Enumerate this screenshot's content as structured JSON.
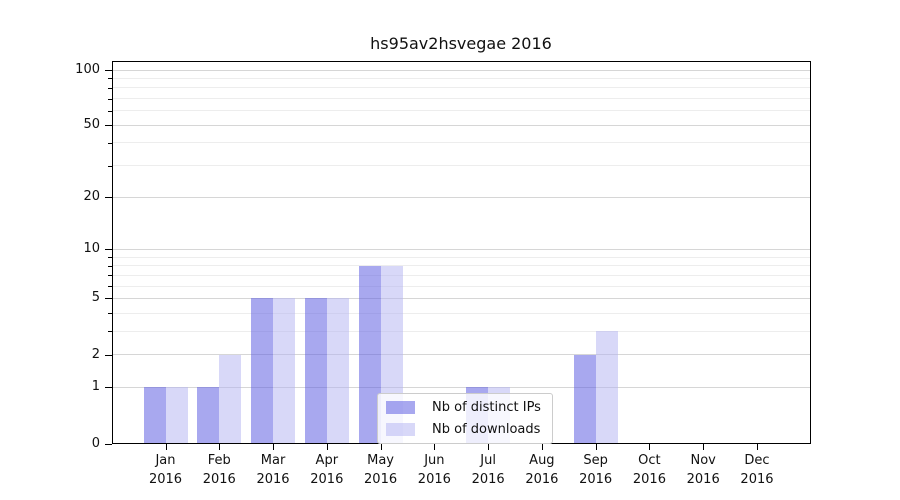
{
  "title": "hs95av2hsvegae 2016",
  "chart_data": {
    "type": "bar",
    "title": "hs95av2hsvegae 2016",
    "categories": [
      "Jan",
      "Feb",
      "Mar",
      "Apr",
      "May",
      "Jun",
      "Jul",
      "Aug",
      "Sep",
      "Oct",
      "Nov",
      "Dec"
    ],
    "category_year": "2016",
    "series": [
      {
        "name": "Nb of distinct IPs",
        "color": "rgba(96,96,226,0.55)",
        "values": [
          1,
          1,
          5,
          5,
          8,
          0,
          1,
          0,
          2,
          0,
          0,
          0
        ]
      },
      {
        "name": "Nb of downloads",
        "color": "rgba(177,177,241,0.5)",
        "values": [
          1,
          2,
          5,
          5,
          8,
          0,
          1,
          0,
          3,
          0,
          0,
          0
        ]
      }
    ],
    "xlabel": "",
    "ylabel": "",
    "scale": "log1p",
    "ylim": [
      0,
      113
    ],
    "yticks": [
      0,
      1,
      2,
      5,
      10,
      20,
      50,
      100
    ],
    "y_minor_ticks": [
      3,
      4,
      6,
      7,
      8,
      9,
      30,
      40,
      60,
      70,
      80,
      90
    ],
    "grid": true,
    "legend_position": "lower center",
    "colors": {
      "major_grid": "#d6d6d6",
      "minor_grid": "#ededed",
      "axis": "#000000",
      "text": "#111111",
      "legend_border": "#cccccc",
      "legend_bg": "rgba(255,255,255,0.8)"
    }
  }
}
